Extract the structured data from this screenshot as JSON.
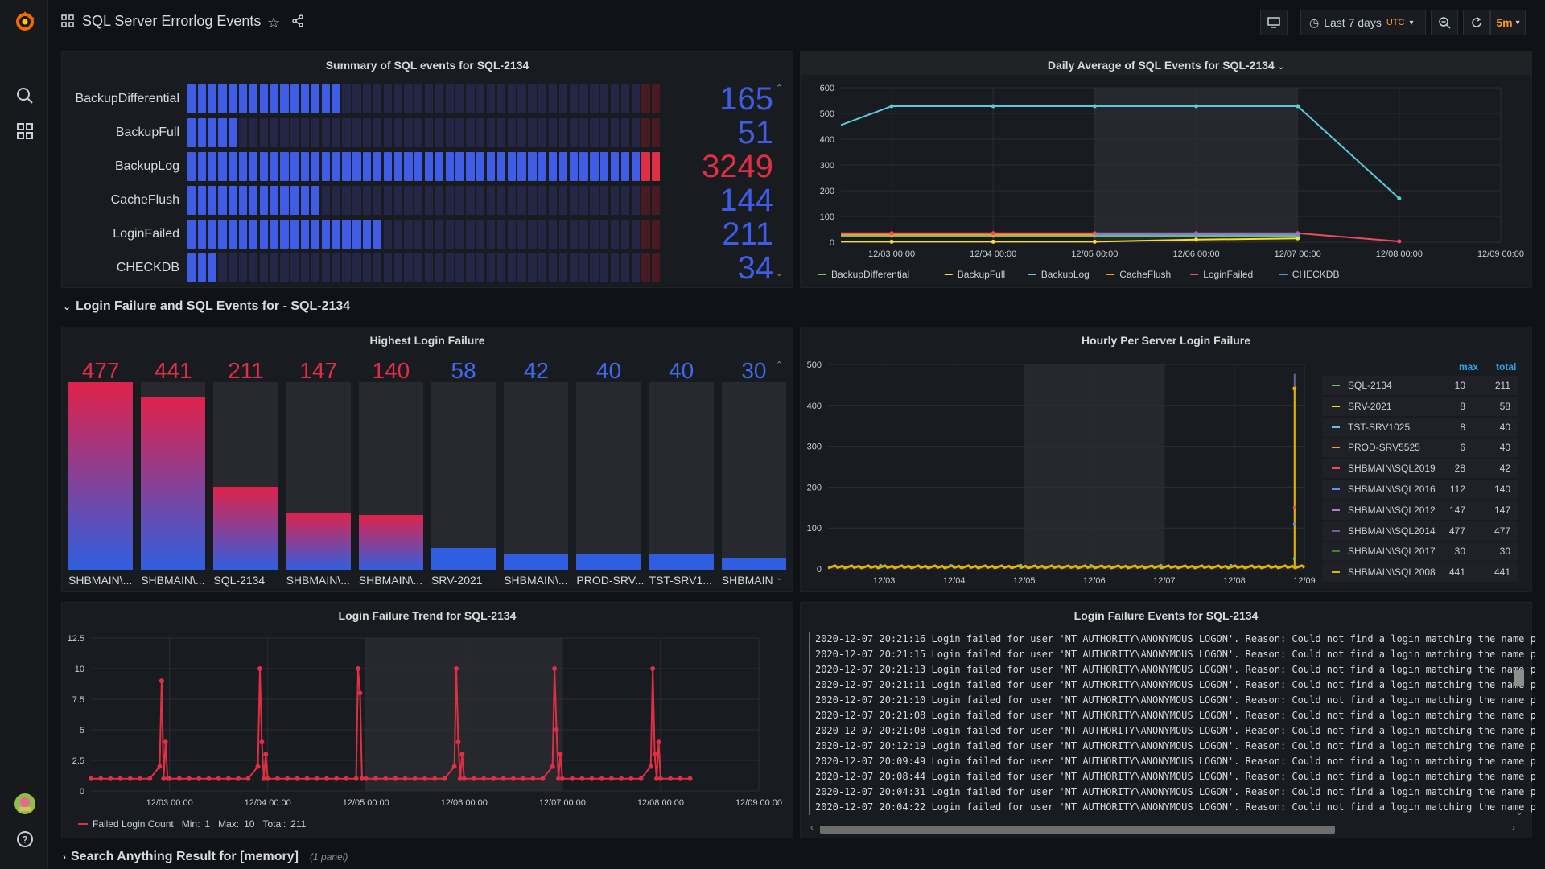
{
  "app": {
    "title": "SQL Server Errorlog Events",
    "time_range": "Last 7 days",
    "timezone": "UTC",
    "refresh": "5m"
  },
  "summary_panel": {
    "title": "Summary of SQL events for SQL-2134",
    "rows": [
      {
        "label": "BackupDifferential",
        "value": "165",
        "fill_fraction": 0.32,
        "color": "#3f5ce6",
        "alert": false
      },
      {
        "label": "BackupFull",
        "value": "51",
        "fill_fraction": 0.1,
        "color": "#3f5ce6",
        "alert": false
      },
      {
        "label": "BackupLog",
        "value": "3249",
        "fill_fraction": 1.0,
        "color": "#e02f44",
        "alert": true
      },
      {
        "label": "CacheFlush",
        "value": "144",
        "fill_fraction": 0.28,
        "color": "#3f5ce6",
        "alert": false
      },
      {
        "label": "LoginFailed",
        "value": "211",
        "fill_fraction": 0.41,
        "color": "#3f5ce6",
        "alert": false
      },
      {
        "label": "CHECKDB",
        "value": "34",
        "fill_fraction": 0.07,
        "color": "#3f5ce6",
        "alert": false
      }
    ]
  },
  "daily_panel": {
    "title": "Daily Average of SQL Events for SQL-2134",
    "chart_data": {
      "type": "line",
      "x": [
        "12/02 12:00",
        "12/03 00:00",
        "12/04 00:00",
        "12/05 00:00",
        "12/06 00:00",
        "12/07 00:00",
        "12/08 00:00"
      ],
      "x_ticks": [
        "12/03 00:00",
        "12/04 00:00",
        "12/05 00:00",
        "12/06 00:00",
        "12/07 00:00",
        "12/08 00:00",
        "12/09 00:00"
      ],
      "y_ticks": [
        "0",
        "100",
        "200",
        "300",
        "400",
        "500",
        "600"
      ],
      "ylim": [
        0,
        600
      ],
      "series": [
        {
          "name": "BackupDifferential",
          "color": "#73bf69",
          "values": [
            25,
            25,
            25,
            25,
            25,
            25,
            null
          ]
        },
        {
          "name": "BackupFull",
          "color": "#fade2a",
          "values": [
            2,
            2,
            2,
            2,
            10,
            15,
            null
          ]
        },
        {
          "name": "BackupLog",
          "color": "#5ac8de",
          "values": [
            455,
            528,
            528,
            528,
            528,
            528,
            170
          ]
        },
        {
          "name": "CacheFlush",
          "color": "#ff9830",
          "values": [
            30,
            30,
            30,
            30,
            30,
            30,
            null
          ]
        },
        {
          "name": "LoginFailed",
          "color": "#f2495c",
          "values": [
            35,
            35,
            35,
            35,
            35,
            35,
            3
          ]
        },
        {
          "name": "CHECKDB",
          "color": "#5794f2",
          "values": [
            null,
            null,
            null,
            30,
            30,
            30,
            null
          ]
        }
      ]
    }
  },
  "row_login": {
    "title": "Login Failure and SQL Events for - SQL-2134"
  },
  "highest_panel": {
    "title": "Highest Login Failure",
    "chart_data": {
      "type": "bar",
      "max": 477,
      "items": [
        {
          "label": "SHBMAIN\\...",
          "value": 477,
          "display": "477",
          "red": true
        },
        {
          "label": "SHBMAIN\\...",
          "value": 441,
          "display": "441",
          "red": true
        },
        {
          "label": "SQL-2134",
          "value": 211,
          "display": "211",
          "red": true
        },
        {
          "label": "SHBMAIN\\...",
          "value": 147,
          "display": "147",
          "red": true
        },
        {
          "label": "SHBMAIN\\...",
          "value": 140,
          "display": "140",
          "red": true
        },
        {
          "label": "SRV-2021",
          "value": 58,
          "display": "58",
          "red": false
        },
        {
          "label": "SHBMAIN\\...",
          "value": 42,
          "display": "42",
          "red": false
        },
        {
          "label": "PROD-SRV...",
          "value": 40,
          "display": "40",
          "red": false
        },
        {
          "label": "TST-SRV1...",
          "value": 40,
          "display": "40",
          "red": false
        },
        {
          "label": "SHBMAIN",
          "value": 30,
          "display": "30",
          "red": false
        }
      ]
    }
  },
  "hourly_panel": {
    "title": "Hourly Per Server Login Failure",
    "legend_headers": {
      "max": "max",
      "total": "total"
    },
    "chart_data": {
      "type": "line",
      "x_ticks": [
        "12/03",
        "12/04",
        "12/05",
        "12/06",
        "12/07",
        "12/08",
        "12/09"
      ],
      "y_ticks": [
        "0",
        "100",
        "200",
        "300",
        "400",
        "500"
      ],
      "ylim": [
        0,
        500
      ],
      "spike": {
        "x_day": 5.86,
        "value": 477
      },
      "spike2": {
        "x_day": 5.86,
        "value": 441
      }
    },
    "legend": [
      {
        "name": "SQL-2134",
        "color": "#73bf69",
        "max": "10",
        "total": "211"
      },
      {
        "name": "SRV-2021",
        "color": "#fade2a",
        "max": "8",
        "total": "58"
      },
      {
        "name": "TST-SRV1025",
        "color": "#5ac8de",
        "max": "8",
        "total": "40"
      },
      {
        "name": "PROD-SRV5525",
        "color": "#ff9830",
        "max": "6",
        "total": "40"
      },
      {
        "name": "SHBMAIN\\SQL2019",
        "color": "#f2495c",
        "max": "28",
        "total": "42"
      },
      {
        "name": "SHBMAIN\\SQL2016",
        "color": "#5794f2",
        "max": "112",
        "total": "140"
      },
      {
        "name": "SHBMAIN\\SQL2012",
        "color": "#b877d9",
        "max": "147",
        "total": "147"
      },
      {
        "name": "SHBMAIN\\SQL2014",
        "color": "#705da0",
        "max": "477",
        "total": "477"
      },
      {
        "name": "SHBMAIN\\SQL2017",
        "color": "#37872d",
        "max": "30",
        "total": "30"
      },
      {
        "name": "SHBMAIN\\SQL2008",
        "color": "#e0b400",
        "max": "441",
        "total": "441"
      }
    ]
  },
  "trend_panel": {
    "title": "Login Failure Trend for SQL-2134",
    "legend": {
      "name": "Failed Login Count",
      "min_label": "Min:",
      "min": "1",
      "max_label": "Max:",
      "max": "10",
      "total_label": "Total:",
      "total": "211"
    },
    "chart_data": {
      "type": "line",
      "x_ticks": [
        "12/03 00:00",
        "12/04 00:00",
        "12/05 00:00",
        "12/06 00:00",
        "12/07 00:00",
        "12/08 00:00",
        "12/09 00:00"
      ],
      "y_ticks": [
        "0",
        "2.5",
        "5",
        "7.5",
        "10",
        "12.5"
      ],
      "ylim": [
        0,
        12.5
      ],
      "baseline": 1,
      "peaks": [
        {
          "day": -0.13,
          "values": [
            2,
            9,
            1,
            4,
            1
          ]
        },
        {
          "day": 0.87,
          "values": [
            2,
            10,
            4,
            1,
            3
          ]
        },
        {
          "day": 1.87,
          "values": [
            1,
            10,
            8,
            1
          ]
        },
        {
          "day": 2.87,
          "values": [
            2,
            10,
            4,
            1,
            3
          ]
        },
        {
          "day": 3.87,
          "values": [
            2,
            10,
            5,
            1,
            3
          ]
        },
        {
          "day": 4.87,
          "values": [
            2,
            10,
            3,
            1,
            4
          ]
        }
      ]
    }
  },
  "events_panel": {
    "title": "Login Failure Events for SQL-2134",
    "lines": [
      "2020-12-07 20:21:16 Login failed for user 'NT AUTHORITY\\ANONYMOUS LOGON'. Reason: Could not find a login matching the name p",
      "2020-12-07 20:21:15 Login failed for user 'NT AUTHORITY\\ANONYMOUS LOGON'. Reason: Could not find a login matching the name p",
      "2020-12-07 20:21:13 Login failed for user 'NT AUTHORITY\\ANONYMOUS LOGON'. Reason: Could not find a login matching the name p",
      "2020-12-07 20:21:11 Login failed for user 'NT AUTHORITY\\ANONYMOUS LOGON'. Reason: Could not find a login matching the name p",
      "2020-12-07 20:21:10 Login failed for user 'NT AUTHORITY\\ANONYMOUS LOGON'. Reason: Could not find a login matching the name p",
      "2020-12-07 20:21:08 Login failed for user 'NT AUTHORITY\\ANONYMOUS LOGON'. Reason: Could not find a login matching the name p",
      "2020-12-07 20:21:08 Login failed for user 'NT AUTHORITY\\ANONYMOUS LOGON'. Reason: Could not find a login matching the name p",
      "2020-12-07 20:12:19 Login failed for user 'NT AUTHORITY\\ANONYMOUS LOGON'. Reason: Could not find a login matching the name p",
      "2020-12-07 20:09:49 Login failed for user 'NT AUTHORITY\\ANONYMOUS LOGON'. Reason: Could not find a login matching the name p",
      "2020-12-07 20:08:44 Login failed for user 'NT AUTHORITY\\ANONYMOUS LOGON'. Reason: Could not find a login matching the name p",
      "2020-12-07 20:04:31 Login failed for user 'NT AUTHORITY\\ANONYMOUS LOGON'. Reason: Could not find a login matching the name p",
      "2020-12-07 20:04:22 Login failed for user 'NT AUTHORITY\\ANONYMOUS LOGON'. Reason: Could not find a login matching the name p"
    ]
  },
  "row_search": {
    "title": "Search Anything Result for [memory]",
    "count": "(1 panel)"
  }
}
